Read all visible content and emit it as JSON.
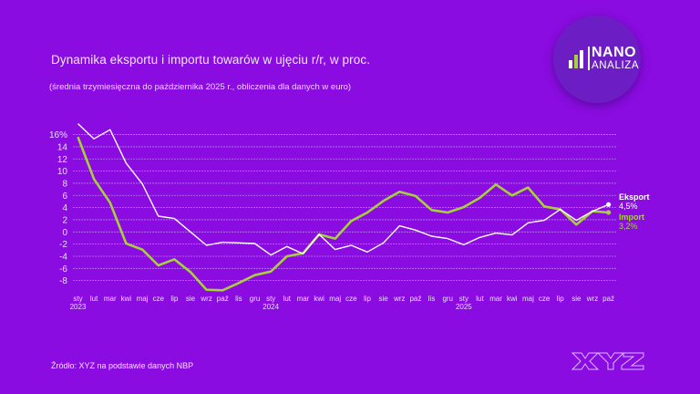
{
  "header": {
    "title": "Dynamika eksportu i importu towarów w ujęciu r/r, w proc.",
    "subtitle": "(średnia trzymiesięczna do października 2025 r., obliczenia dla danych w euro)"
  },
  "logo": {
    "line1": "NANO",
    "line2": "ANALIZA"
  },
  "footer": {
    "source": "Źródło: XYZ na podstawie danych NBP",
    "brand": "XYZ"
  },
  "colors": {
    "background": "#8a0ce0",
    "export": "#ffffff",
    "import": "#a6d13a",
    "grid": "#b77ef0",
    "logo_circle": "#6d1dc4"
  },
  "chart_data": {
    "type": "line",
    "title": "Dynamika eksportu i importu towarów w ujęciu r/r, w proc.",
    "subtitle": "(średnia trzymiesięczna do października 2025 r., obliczenia dla danych w euro)",
    "xlabel": "",
    "ylabel": "",
    "ylim": [
      -10,
      18
    ],
    "yticks": [
      16,
      14,
      12,
      10,
      8,
      6,
      4,
      2,
      0,
      -2,
      -4,
      -6,
      -8
    ],
    "ytick_labels": [
      "16%",
      "14",
      "12",
      "10",
      "8",
      "6",
      "4",
      "2",
      "0",
      "-2",
      "-4",
      "-6",
      "-8"
    ],
    "grid": true,
    "x": [
      "sty",
      "lut",
      "mar",
      "kwi",
      "maj",
      "cze",
      "lip",
      "sie",
      "wrz",
      "paź",
      "lis",
      "gru",
      "sty",
      "lut",
      "mar",
      "kwi",
      "maj",
      "cze",
      "lip",
      "sie",
      "wrz",
      "paź",
      "lis",
      "gru",
      "sty",
      "lut",
      "mar",
      "kwi",
      "maj",
      "cze",
      "lip",
      "sie",
      "wrz",
      "paź"
    ],
    "year_labels": [
      {
        "index": 0,
        "label": "2023"
      },
      {
        "index": 12,
        "label": "2024"
      },
      {
        "index": 24,
        "label": "2025"
      }
    ],
    "series": [
      {
        "name": "Eksport",
        "end_label": "4,5%",
        "values": [
          17.8,
          15.3,
          16.8,
          11.3,
          7.9,
          2.6,
          2.2,
          0.0,
          -2.2,
          -1.7,
          -1.8,
          -1.9,
          -3.8,
          -2.4,
          -3.6,
          -0.4,
          -2.9,
          -2.2,
          -3.3,
          -1.8,
          1.0,
          0.3,
          -0.7,
          -1.1,
          -2.1,
          -0.9,
          -0.2,
          -0.5,
          1.5,
          1.9,
          3.7,
          1.9,
          3.4,
          4.5
        ]
      },
      {
        "name": "Import",
        "end_label": "3,2%",
        "values": [
          15.6,
          8.7,
          4.8,
          -1.9,
          -2.9,
          -5.5,
          -4.5,
          -6.6,
          -9.5,
          -9.6,
          -8.4,
          -7.1,
          -6.5,
          -4.0,
          -3.5,
          -0.4,
          -1.1,
          1.8,
          3.2,
          5.1,
          6.6,
          5.9,
          3.6,
          3.2,
          4.1,
          5.6,
          7.8,
          6.0,
          7.3,
          4.2,
          3.7,
          1.2,
          3.4,
          3.2
        ]
      }
    ],
    "legend": "right-end-labels"
  }
}
